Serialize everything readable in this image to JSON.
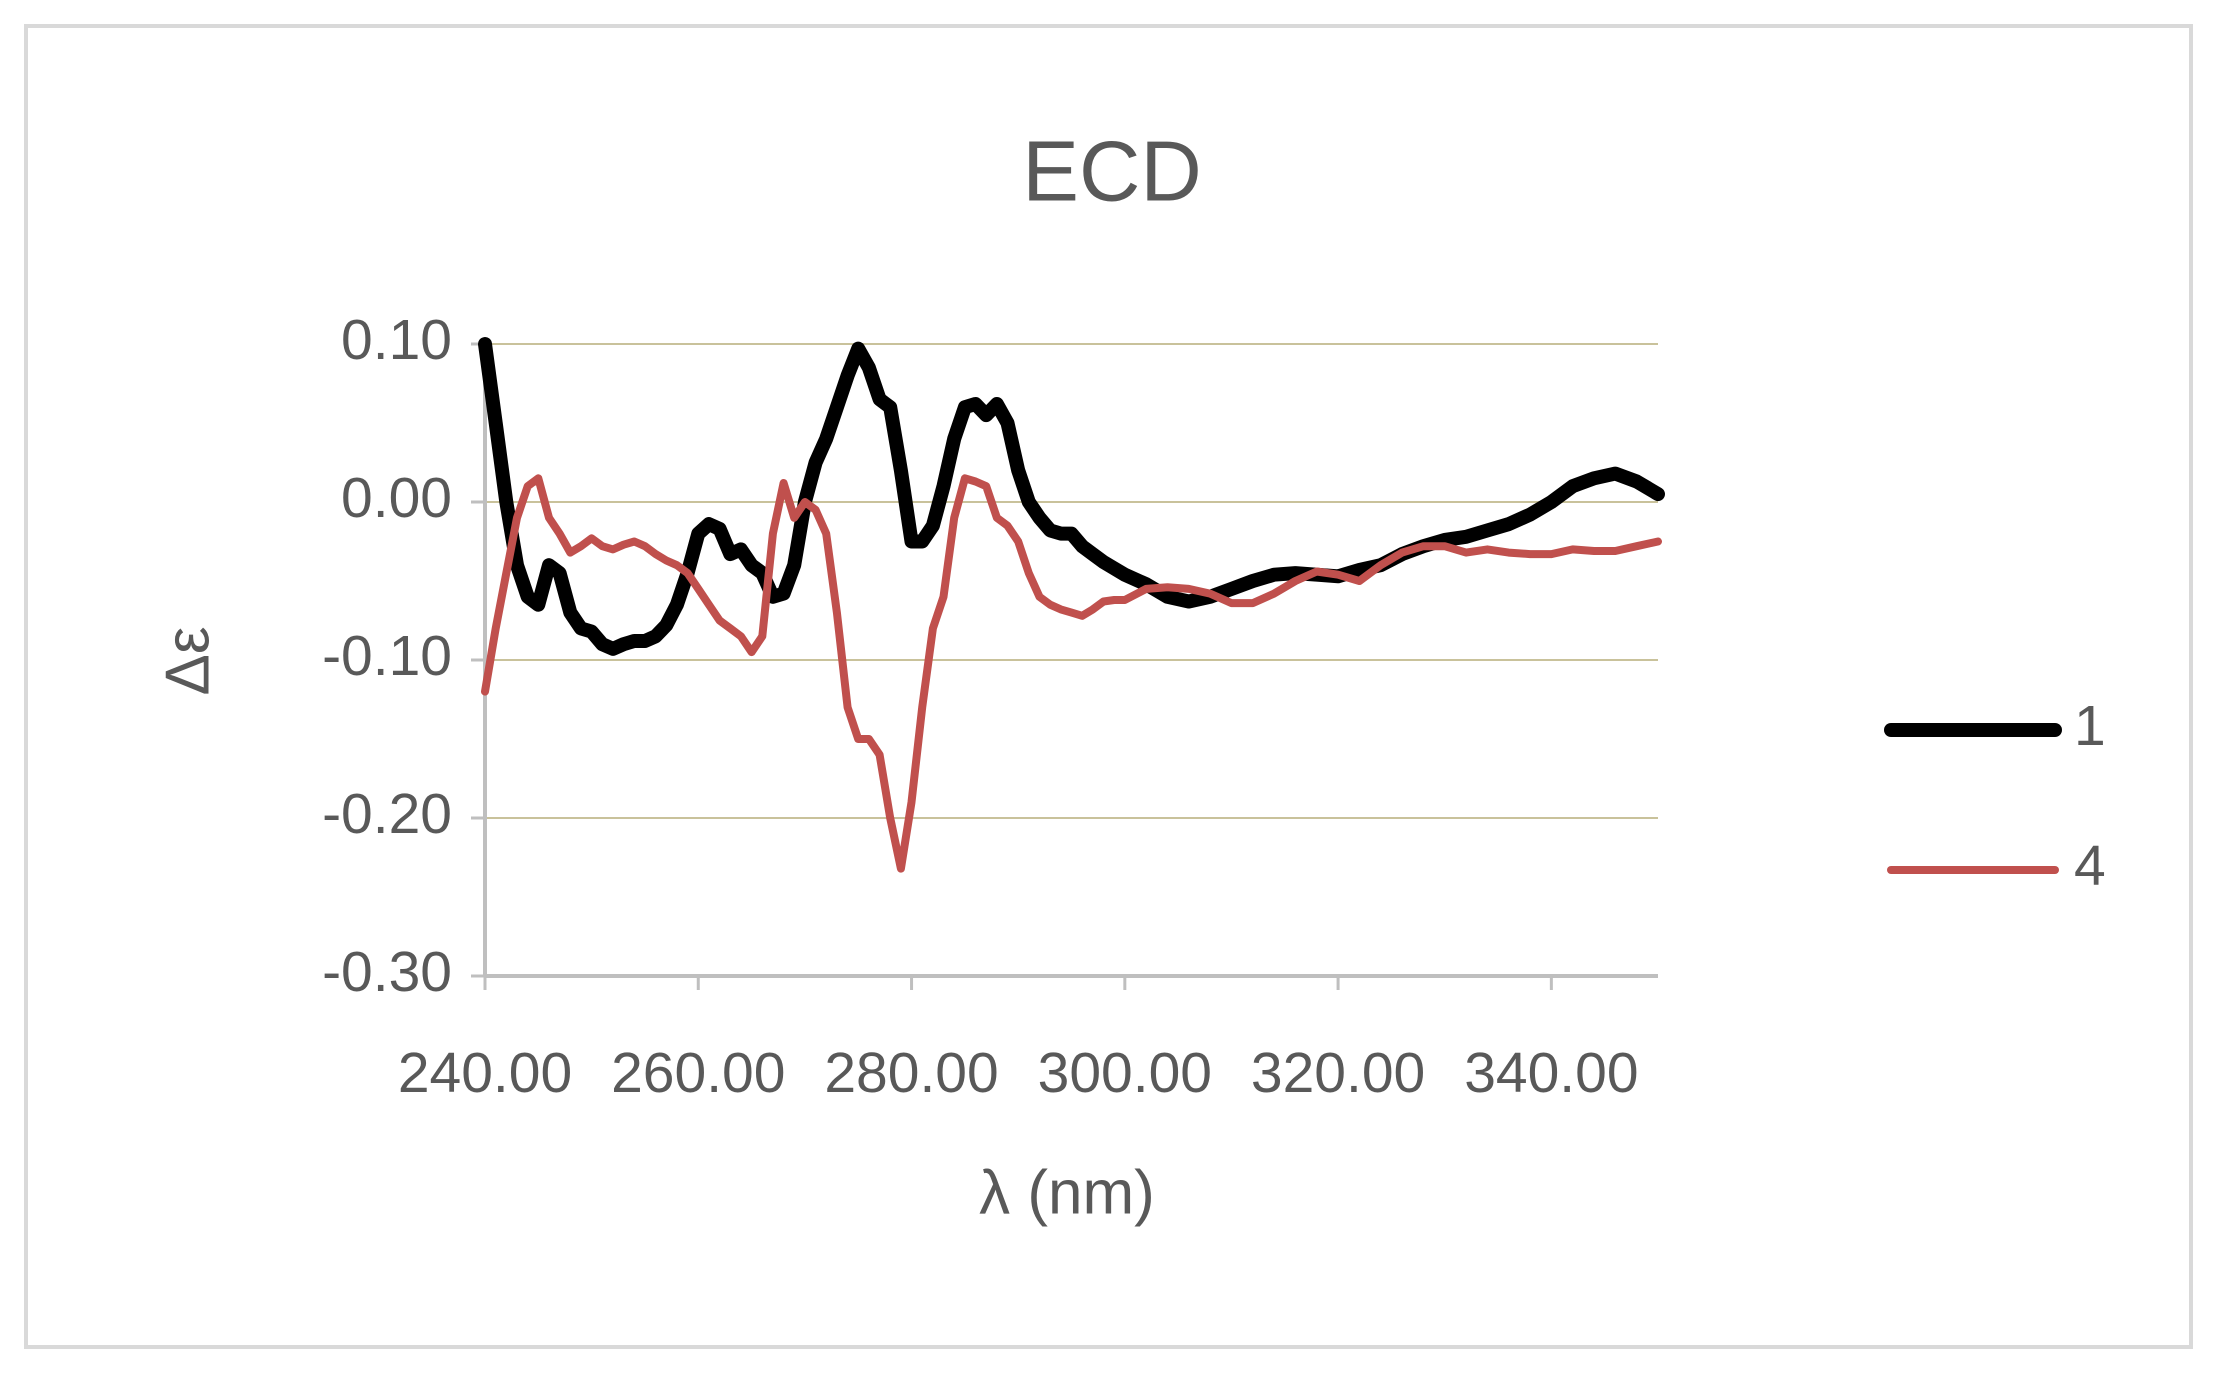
{
  "chart_data": {
    "type": "line",
    "title": "ECD",
    "x_label": "λ (nm)",
    "y_label": "Δε",
    "x": [
      240,
      241,
      242,
      243,
      244,
      245,
      246,
      247,
      248,
      249,
      250,
      251,
      252,
      253,
      254,
      255,
      256,
      257,
      258,
      259,
      260,
      261,
      262,
      263,
      264,
      265,
      266,
      267,
      268,
      269,
      270,
      271,
      272,
      273,
      274,
      275,
      276,
      277,
      278,
      279,
      280,
      281,
      282,
      283,
      284,
      285,
      286,
      287,
      288,
      289,
      290,
      291,
      292,
      293,
      294,
      295,
      296,
      297,
      298,
      299,
      300,
      302,
      304,
      306,
      308,
      310,
      312,
      314,
      316,
      318,
      320,
      322,
      324,
      326,
      328,
      330,
      332,
      334,
      336,
      338,
      340,
      342,
      344,
      346,
      348,
      350
    ],
    "series": [
      {
        "name": "1",
        "color": "#000000",
        "values": [
          0.1,
          0.05,
          0.0,
          -0.04,
          -0.06,
          -0.065,
          -0.04,
          -0.045,
          -0.07,
          -0.08,
          -0.082,
          -0.09,
          -0.093,
          -0.09,
          -0.088,
          -0.088,
          -0.085,
          -0.078,
          -0.065,
          -0.045,
          -0.02,
          -0.014,
          -0.017,
          -0.033,
          -0.03,
          -0.04,
          -0.045,
          -0.06,
          -0.058,
          -0.04,
          0.0,
          0.025,
          0.04,
          0.06,
          0.08,
          0.097,
          0.085,
          0.065,
          0.06,
          0.02,
          -0.025,
          -0.025,
          -0.015,
          0.01,
          0.04,
          0.06,
          0.062,
          0.055,
          0.062,
          0.05,
          0.02,
          0.0,
          -0.01,
          -0.018,
          -0.02,
          -0.02,
          -0.028,
          -0.033,
          -0.038,
          -0.042,
          -0.046,
          -0.052,
          -0.06,
          -0.063,
          -0.06,
          -0.055,
          -0.05,
          -0.046,
          -0.045,
          -0.046,
          -0.047,
          -0.043,
          -0.04,
          -0.033,
          -0.028,
          -0.024,
          -0.022,
          -0.018,
          -0.014,
          -0.008,
          0.0,
          0.01,
          0.015,
          0.018,
          0.013,
          0.005
        ]
      },
      {
        "name": "4",
        "color": "#c0504d",
        "values": [
          -0.12,
          -0.08,
          -0.045,
          -0.01,
          0.01,
          0.015,
          -0.01,
          -0.02,
          -0.032,
          -0.028,
          -0.023,
          -0.028,
          -0.03,
          -0.027,
          -0.025,
          -0.028,
          -0.033,
          -0.037,
          -0.04,
          -0.045,
          -0.055,
          -0.065,
          -0.075,
          -0.08,
          -0.085,
          -0.095,
          -0.085,
          -0.02,
          0.012,
          -0.01,
          0.0,
          -0.005,
          -0.02,
          -0.07,
          -0.13,
          -0.15,
          -0.15,
          -0.16,
          -0.2,
          -0.232,
          -0.19,
          -0.13,
          -0.08,
          -0.06,
          -0.01,
          0.015,
          0.013,
          0.01,
          -0.01,
          -0.015,
          -0.025,
          -0.045,
          -0.06,
          -0.065,
          -0.068,
          -0.07,
          -0.072,
          -0.068,
          -0.063,
          -0.062,
          -0.062,
          -0.055,
          -0.054,
          -0.055,
          -0.058,
          -0.064,
          -0.064,
          -0.058,
          -0.05,
          -0.044,
          -0.046,
          -0.05,
          -0.04,
          -0.032,
          -0.028,
          -0.028,
          -0.032,
          -0.03,
          -0.032,
          -0.033,
          -0.033,
          -0.03,
          -0.031,
          -0.031,
          -0.028,
          -0.025
        ]
      }
    ],
    "xlim": [
      240,
      350
    ],
    "xticks": [
      {
        "value": 240,
        "label": "240.00"
      },
      {
        "value": 260,
        "label": "260.00"
      },
      {
        "value": 280,
        "label": "280.00"
      },
      {
        "value": 300,
        "label": "300.00"
      },
      {
        "value": 320,
        "label": "320.00"
      },
      {
        "value": 340,
        "label": "340.00"
      }
    ],
    "ylim": [
      -0.3,
      0.1
    ],
    "yticks": [
      {
        "value": -0.3,
        "label": "-0.30"
      },
      {
        "value": -0.2,
        "label": "-0.20"
      },
      {
        "value": -0.1,
        "label": "-0.10"
      },
      {
        "value": 0,
        "label": "0.00"
      },
      {
        "value": 0.1,
        "label": "0.10"
      }
    ],
    "grid": true,
    "legend": "right"
  }
}
